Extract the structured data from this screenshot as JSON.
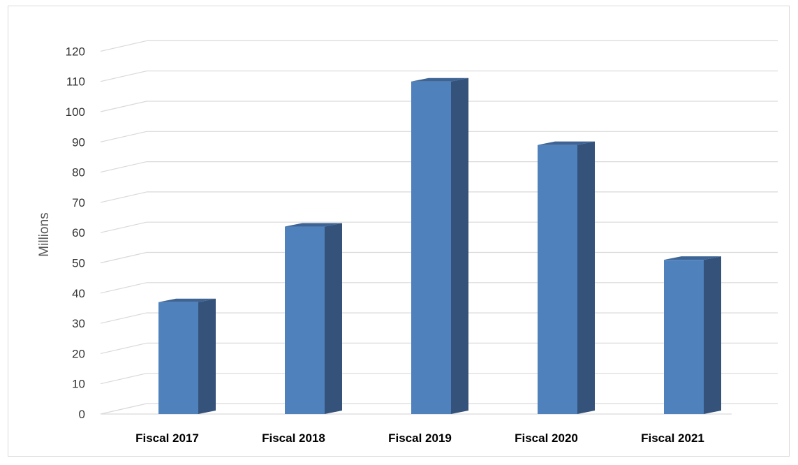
{
  "chart_data": {
    "type": "bar",
    "style": "3d-column",
    "title": "",
    "xlabel": "",
    "ylabel": "Millions",
    "ylim": [
      0,
      120
    ],
    "ytick_step": 10,
    "grid": true,
    "legend": "none",
    "categories": [
      "Fiscal 2017",
      "Fiscal 2018",
      "Fiscal 2019",
      "Fiscal 2020",
      "Fiscal 2021"
    ],
    "series": [
      {
        "values": [
          37,
          62,
          110,
          89,
          51
        ]
      }
    ],
    "colors": {
      "bar_front": "#4f81bd",
      "bar_side": "#34527a",
      "bar_top": "#3d6494",
      "gridline": "#d9d9d9",
      "wall": "#ffffff"
    }
  }
}
